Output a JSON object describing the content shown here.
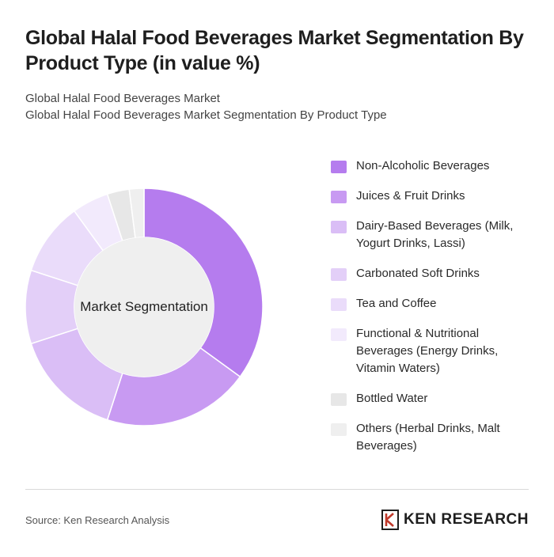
{
  "header": {
    "title": "Global Halal Food Beverages Market Segmentation By Product Type (in value %)",
    "subtitle_line1": "Global Halal Food Beverages Market",
    "subtitle_line2": "Global Halal Food Beverages Market Segmentation By Product Type"
  },
  "chart_data": {
    "type": "pie",
    "variant": "donut",
    "center_label": "Market Segmentation",
    "categories": [
      "Non-Alcoholic Beverages",
      "Juices & Fruit Drinks",
      "Dairy-Based Beverages (Milk, Yogurt Drinks, Lassi)",
      "Carbonated Soft Drinks",
      "Tea and Coffee",
      "Functional & Nutritional Beverages (Energy Drinks, Vitamin Waters)",
      "Bottled Water",
      "Others (Herbal Drinks, Malt Beverages)"
    ],
    "values": [
      35,
      20,
      15,
      10,
      10,
      5,
      3,
      2
    ],
    "colors": [
      "#b57cee",
      "#c89af2",
      "#dabef6",
      "#e3cff8",
      "#eadcfa",
      "#f2eafc",
      "#e7e7e7",
      "#efefef"
    ],
    "legend_position": "right"
  },
  "footer": {
    "source": "Source: Ken Research Analysis",
    "brand": "KEN RESEARCH"
  }
}
